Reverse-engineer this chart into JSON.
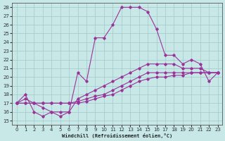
{
  "xlabel": "Windchill (Refroidissement éolien,°C)",
  "background_color": "#c8e8e8",
  "grid_color": "#a0c8c8",
  "line_color": "#993399",
  "xlim": [
    -0.5,
    23.5
  ],
  "ylim": [
    14.5,
    28.5
  ],
  "xticks": [
    0,
    1,
    2,
    3,
    4,
    5,
    6,
    7,
    8,
    9,
    10,
    11,
    12,
    13,
    14,
    15,
    16,
    17,
    18,
    19,
    20,
    21,
    22,
    23
  ],
  "yticks": [
    15,
    16,
    17,
    18,
    19,
    20,
    21,
    22,
    23,
    24,
    25,
    26,
    27,
    28
  ],
  "series": [
    [
      17.0,
      18.0,
      16.0,
      15.5,
      16.0,
      15.5,
      16.0,
      20.5,
      19.5,
      24.5,
      24.5,
      26.0,
      28.0,
      28.0,
      28.0,
      27.5,
      25.5,
      22.5,
      22.5,
      21.5,
      22.0,
      21.5,
      19.5,
      20.5
    ],
    [
      17.0,
      17.5,
      17.0,
      16.5,
      16.0,
      16.0,
      16.0,
      17.5,
      18.0,
      18.5,
      19.0,
      19.5,
      20.0,
      20.5,
      21.0,
      21.5,
      21.5,
      21.5,
      21.5,
      21.0,
      21.0,
      21.0,
      20.5,
      20.5
    ],
    [
      17.0,
      17.0,
      17.0,
      17.0,
      17.0,
      17.0,
      17.0,
      17.2,
      17.5,
      17.8,
      18.0,
      18.5,
      19.0,
      19.5,
      20.0,
      20.5,
      20.5,
      20.5,
      20.5,
      20.5,
      20.5,
      20.5,
      20.5,
      20.5
    ],
    [
      17.0,
      17.0,
      17.0,
      17.0,
      17.0,
      17.0,
      17.0,
      17.0,
      17.2,
      17.5,
      17.8,
      18.0,
      18.5,
      19.0,
      19.5,
      19.8,
      20.0,
      20.0,
      20.2,
      20.2,
      20.5,
      20.5,
      20.5,
      20.5
    ]
  ]
}
